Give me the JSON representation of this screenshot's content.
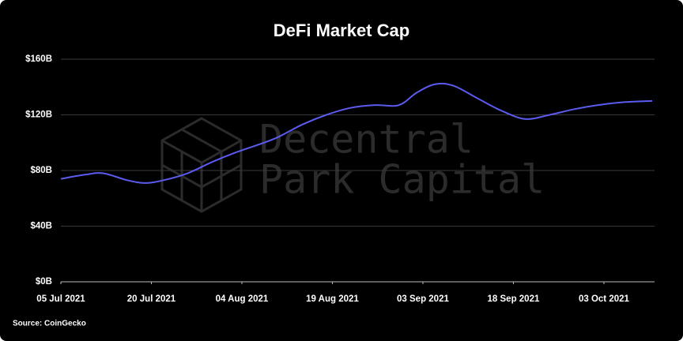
{
  "chart_data": {
    "type": "line",
    "title": "DeFi Market Cap",
    "source": "Source: CoinGecko",
    "watermark": [
      "Decentral",
      "Park Capital"
    ],
    "x": [
      "2021-07-05",
      "2021-07-09",
      "2021-07-12",
      "2021-07-16",
      "2021-07-19",
      "2021-07-22",
      "2021-07-26",
      "2021-07-30",
      "2021-08-03",
      "2021-08-07",
      "2021-08-10",
      "2021-08-14",
      "2021-08-18",
      "2021-08-22",
      "2021-08-26",
      "2021-08-30",
      "2021-09-02",
      "2021-09-05",
      "2021-09-08",
      "2021-09-12",
      "2021-09-16",
      "2021-09-20",
      "2021-09-24",
      "2021-09-28",
      "2021-10-02",
      "2021-10-06",
      "2021-10-11"
    ],
    "series": [
      {
        "name": "DeFi Market Cap",
        "color": "#5b5bf0",
        "values": [
          74,
          77,
          78,
          73,
          71,
          73,
          78,
          86,
          93,
          99,
          104,
          113,
          120,
          125,
          127,
          127,
          136,
          142,
          141,
          132,
          123,
          117,
          120,
          124,
          127,
          129,
          130
        ]
      }
    ],
    "xlim": [
      "2021-07-05",
      "2021-10-11"
    ],
    "xticks": [
      {
        "value": "2021-07-05",
        "label": "05 Jul 2021"
      },
      {
        "value": "2021-07-20",
        "label": "20 Jul 2021"
      },
      {
        "value": "2021-08-04",
        "label": "04 Aug 2021"
      },
      {
        "value": "2021-08-19",
        "label": "19 Aug 2021"
      },
      {
        "value": "2021-09-03",
        "label": "03 Sep 2021"
      },
      {
        "value": "2021-09-18",
        "label": "18 Sep 2021"
      },
      {
        "value": "2021-10-03",
        "label": "03 Oct 2021"
      }
    ],
    "ylim": [
      0,
      160
    ],
    "yticks": [
      {
        "value": 0,
        "label": "$0B"
      },
      {
        "value": 40,
        "label": "$40B"
      },
      {
        "value": 80,
        "label": "$80B"
      },
      {
        "value": 120,
        "label": "$120B"
      },
      {
        "value": 160,
        "label": "$160B"
      }
    ],
    "grid": true
  }
}
